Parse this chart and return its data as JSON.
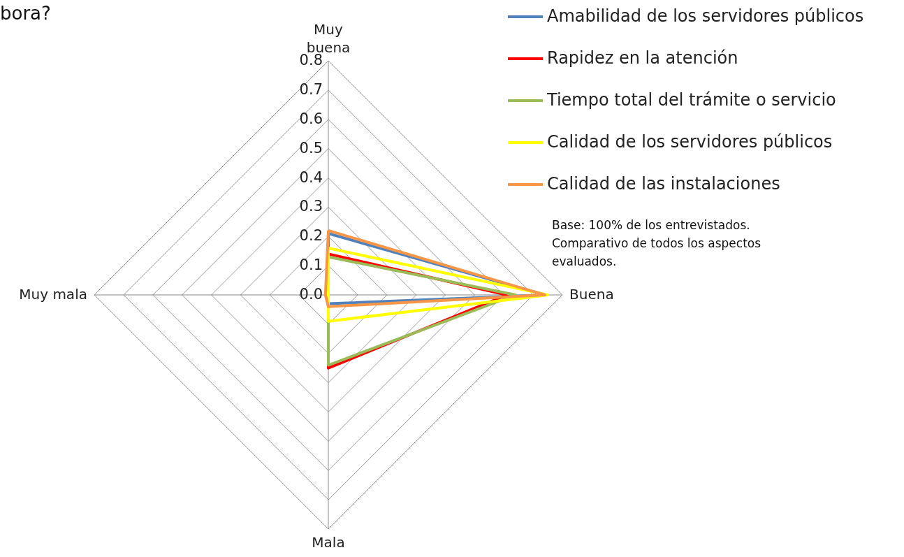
{
  "chart_data": {
    "type": "radar",
    "title": "bora?",
    "categories": [
      "Muy buena",
      "Buena",
      "Mala",
      "Muy mala"
    ],
    "series": [
      {
        "name": "Amabilidad de los servidores públicos",
        "color": "#4f81bd",
        "values": [
          0.21,
          0.74,
          0.03,
          0
        ]
      },
      {
        "name": "Rapidez en la atención",
        "color": "#ff0000",
        "values": [
          0.14,
          0.61,
          0.25,
          0
        ]
      },
      {
        "name": "Tiempo total del trámite o servicio",
        "color": "#9bbb59",
        "values": [
          0.13,
          0.64,
          0.24,
          0
        ]
      },
      {
        "name": "Calidad de los servidores públicos",
        "color": "#ffff00",
        "values": [
          0.16,
          0.75,
          0.09,
          0
        ]
      },
      {
        "name": "Calidad de las instalaciones",
        "color": "#f79646",
        "values": [
          0.22,
          0.74,
          0.04,
          0.01
        ]
      }
    ],
    "ylim": [
      0,
      0.8
    ],
    "yticks": [
      {
        "value": 0,
        "label": "0.0"
      },
      {
        "value": 0.1,
        "label": "0.1"
      },
      {
        "value": 0.2,
        "label": "0.2"
      },
      {
        "value": 0.3,
        "label": "0.3"
      },
      {
        "value": 0.4,
        "label": "0.4"
      },
      {
        "value": 0.5,
        "label": "0.5"
      },
      {
        "value": 0.6,
        "label": "0.6"
      },
      {
        "value": 0.7,
        "label": "0.7"
      },
      {
        "value": 0.8,
        "label": "0.8"
      }
    ],
    "grid": true,
    "legend": "top right",
    "marker": "none",
    "annotations": [
      "Base: 100% de los entrevistados. Comparativo de todos los aspectos evaluados."
    ]
  }
}
